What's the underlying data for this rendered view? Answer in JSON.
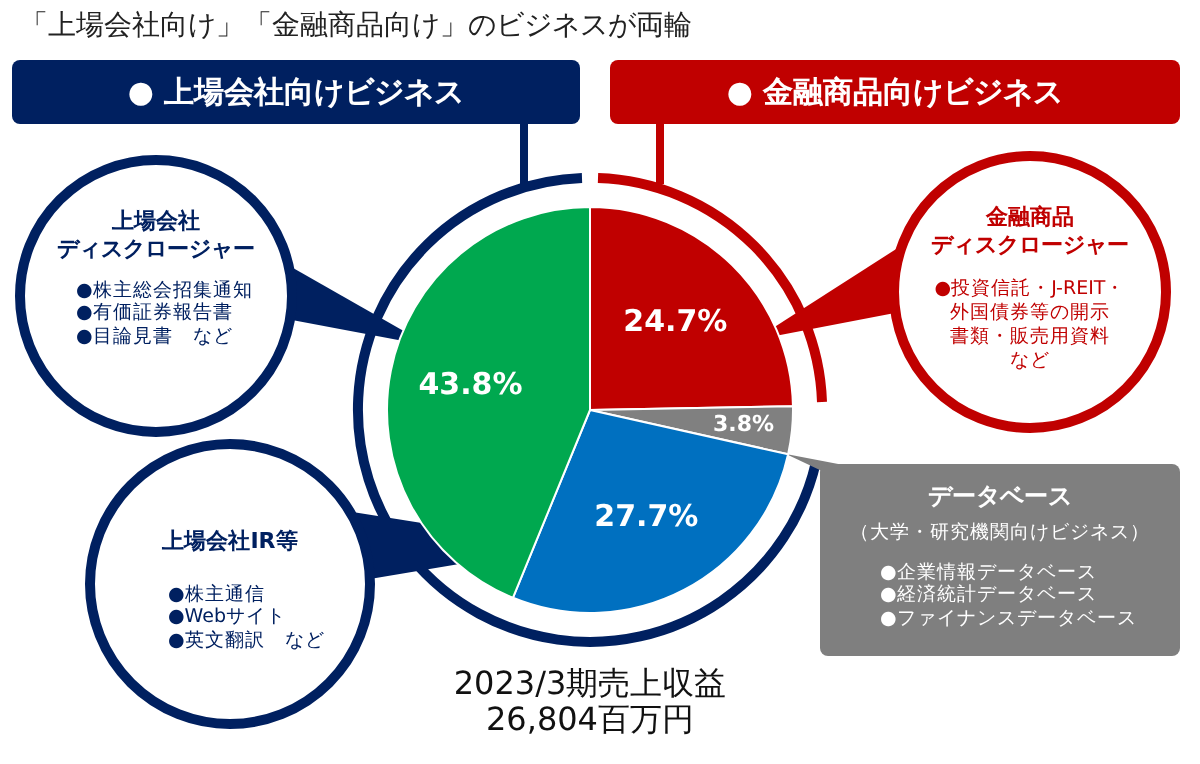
{
  "chart_data": {
    "type": "pie",
    "title": "「上場会社向け」「金融商品向け」のビジネスが両輪",
    "categories": [
      null,
      null,
      null,
      null
    ],
    "values": [
      24.7,
      3.8,
      27.7,
      43.8
    ],
    "colors": [
      "#c00000",
      "#808080",
      "#0070c0",
      "#00a84f"
    ],
    "value_labels": [
      "24.7%",
      "3.8%",
      "27.7%",
      "43.8%"
    ],
    "legend": false,
    "annotations": [
      "● 上場会社向けビジネス",
      "● 金融商品向けビジネス",
      "上場会社",
      "ディスクロージャー",
      "●株主総会招集通知\n●有価証券報告書\n●目論見書　など",
      "上場会社IR等",
      "●株主通信\n●Webサイト\n●英文翻訳　など",
      "金融商品",
      "ディスクロージャー",
      "●投資信託・J-REIT・",
      "外国債券等の開示",
      "書類・販売用資料",
      "など",
      "データベース",
      "（大学・研究機関向けビジネス）",
      "●企業情報データベース\n●経済統計データベース\n●ファイナンスデータベース",
      "2023/3期売上収益",
      "26,804百万円"
    ]
  }
}
